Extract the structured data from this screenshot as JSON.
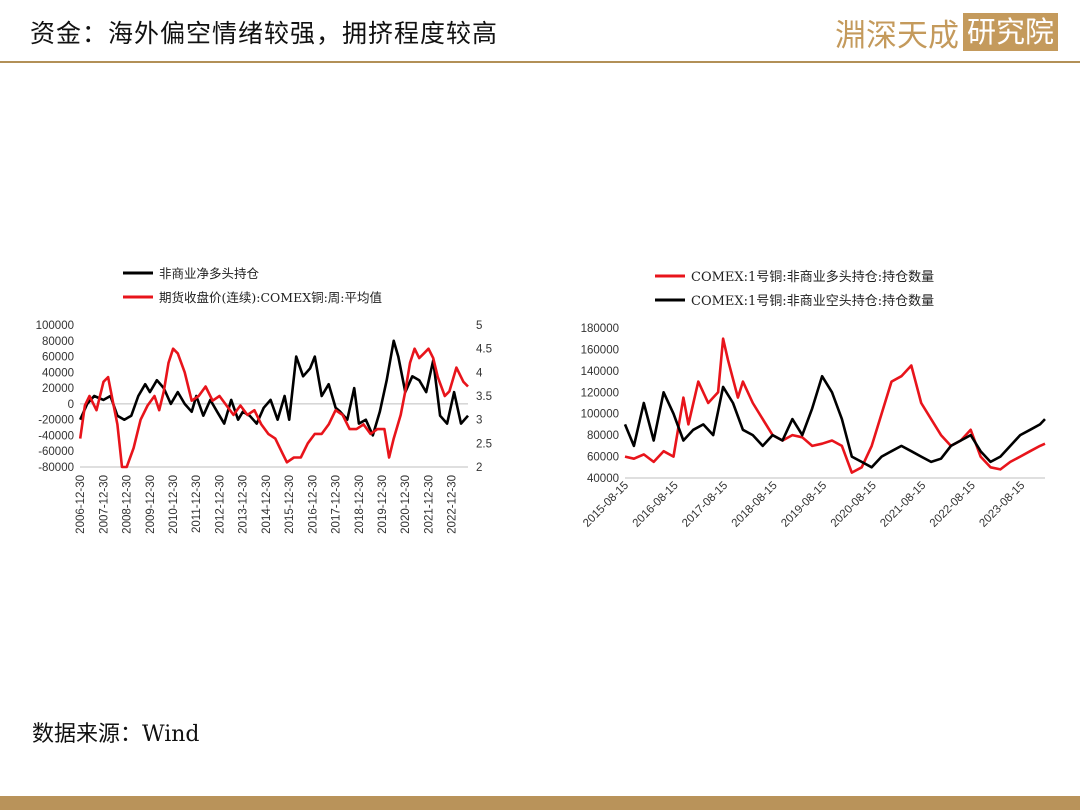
{
  "header": {
    "title": "资金：海外偏空情绪较强，拥挤程度较高",
    "logo_text": "淵深天成",
    "logo_boxed": "研究院"
  },
  "colors": {
    "accent": "#b9935a",
    "red": "#e8141b",
    "black": "#000000"
  },
  "source_text": "数据来源：Wind",
  "chart_data": [
    {
      "type": "line",
      "legend": [
        "非商业净多头持仓",
        "期货收盘价(连续):COMEX铜:周:平均值"
      ],
      "y_left": {
        "range": [
          -80000,
          100000
        ],
        "ticks": [
          "100000",
          "80000",
          "60000",
          "40000",
          "20000",
          "0",
          "-20000",
          "-40000",
          "-60000",
          "-80000"
        ]
      },
      "y_right": {
        "range": [
          2,
          5
        ],
        "ticks": [
          "5",
          "4.5",
          "4",
          "3.5",
          "3",
          "2.5",
          "2"
        ]
      },
      "x_range": [
        2006.99,
        2023.7
      ],
      "x_ticks": [
        "2006-12-30",
        "2007-12-30",
        "2008-12-30",
        "2009-12-30",
        "2010-12-30",
        "2011-12-30",
        "2012-12-30",
        "2013-12-30",
        "2014-12-30",
        "2015-12-30",
        "2016-12-30",
        "2017-12-30",
        "2018-12-30",
        "2019-12-30",
        "2020-12-30",
        "2021-12-30",
        "2022-12-30"
      ],
      "series": [
        {
          "name": "非商业净多头持仓",
          "axis": "left",
          "color": "#000000",
          "x": [
            2007.0,
            2007.3,
            2007.6,
            2008.0,
            2008.3,
            2008.6,
            2008.9,
            2009.2,
            2009.5,
            2009.8,
            2010.0,
            2010.3,
            2010.6,
            2010.9,
            2011.2,
            2011.5,
            2011.8,
            2012.0,
            2012.3,
            2012.6,
            2012.9,
            2013.2,
            2013.5,
            2013.8,
            2014.0,
            2014.3,
            2014.6,
            2014.9,
            2015.2,
            2015.5,
            2015.8,
            2016.0,
            2016.3,
            2016.6,
            2016.9,
            2017.1,
            2017.4,
            2017.7,
            2018.0,
            2018.2,
            2018.5,
            2018.8,
            2019.0,
            2019.3,
            2019.6,
            2019.9,
            2020.2,
            2020.5,
            2020.7,
            2021.0,
            2021.3,
            2021.6,
            2021.9,
            2022.2,
            2022.5,
            2022.8,
            2023.1,
            2023.4,
            2023.7
          ],
          "y": [
            -20000,
            0,
            10000,
            5000,
            10000,
            -15000,
            -20000,
            -15000,
            10000,
            25000,
            15000,
            30000,
            20000,
            0,
            15000,
            0,
            -10000,
            10000,
            -15000,
            5000,
            -10000,
            -25000,
            5000,
            -20000,
            -10000,
            -15000,
            -25000,
            -5000,
            5000,
            -20000,
            10000,
            -20000,
            60000,
            35000,
            45000,
            60000,
            10000,
            25000,
            -5000,
            -10000,
            -20000,
            20000,
            -25000,
            -20000,
            -40000,
            -10000,
            30000,
            80000,
            60000,
            15000,
            35000,
            30000,
            15000,
            55000,
            -15000,
            -25000,
            15000,
            -25000,
            -15000
          ]
        },
        {
          "name": "期货收盘价(连续):COMEX铜:周:平均值",
          "axis": "right",
          "color": "#e8141b",
          "x": [
            2007.0,
            2007.2,
            2007.4,
            2007.7,
            2008.0,
            2008.2,
            2008.4,
            2008.6,
            2008.8,
            2009.0,
            2009.3,
            2009.6,
            2009.9,
            2010.2,
            2010.4,
            2010.6,
            2010.8,
            2011.0,
            2011.2,
            2011.5,
            2011.8,
            2012.1,
            2012.4,
            2012.7,
            2013.0,
            2013.3,
            2013.6,
            2013.9,
            2014.2,
            2014.5,
            2014.8,
            2015.1,
            2015.4,
            2015.7,
            2015.9,
            2016.2,
            2016.5,
            2016.8,
            2017.1,
            2017.4,
            2017.7,
            2018.0,
            2018.3,
            2018.6,
            2018.9,
            2019.2,
            2019.5,
            2019.8,
            2020.1,
            2020.3,
            2020.5,
            2020.8,
            2021.0,
            2021.2,
            2021.4,
            2021.6,
            2021.8,
            2022.0,
            2022.2,
            2022.4,
            2022.7,
            2022.9,
            2023.2,
            2023.5,
            2023.7
          ],
          "y": [
            2.6,
            3.3,
            3.5,
            3.2,
            3.8,
            3.9,
            3.4,
            2.9,
            2.0,
            2.0,
            2.4,
            3.0,
            3.3,
            3.5,
            3.2,
            3.6,
            4.2,
            4.5,
            4.4,
            4.0,
            3.4,
            3.5,
            3.7,
            3.4,
            3.5,
            3.3,
            3.1,
            3.3,
            3.1,
            3.2,
            2.9,
            2.7,
            2.6,
            2.3,
            2.1,
            2.2,
            2.2,
            2.5,
            2.7,
            2.7,
            2.9,
            3.2,
            3.1,
            2.8,
            2.8,
            2.9,
            2.7,
            2.8,
            2.8,
            2.2,
            2.6,
            3.1,
            3.6,
            4.2,
            4.5,
            4.3,
            4.4,
            4.5,
            4.3,
            3.9,
            3.5,
            3.6,
            4.1,
            3.8,
            3.7
          ]
        }
      ]
    },
    {
      "type": "line",
      "legend": [
        "COMEX:1号铜:非商业多头持仓:持仓数量",
        "COMEX:1号铜:非商业空头持仓:持仓数量"
      ],
      "y_left": {
        "range": [
          40000,
          180000
        ],
        "ticks": [
          "180000",
          "160000",
          "140000",
          "120000",
          "100000",
          "80000",
          "60000",
          "40000"
        ]
      },
      "x_range": [
        2015.62,
        2024.1
      ],
      "x_ticks": [
        "2015-08-15",
        "2016-08-15",
        "2017-08-15",
        "2018-08-15",
        "2019-08-15",
        "2020-08-15",
        "2021-08-15",
        "2022-08-15",
        "2023-08-15"
      ],
      "series": [
        {
          "name": "COMEX:1号铜:非商业多头持仓:持仓数量",
          "axis": "left",
          "color": "#e8141b",
          "x": [
            2015.62,
            2015.8,
            2016.0,
            2016.2,
            2016.4,
            2016.6,
            2016.8,
            2016.9,
            2017.1,
            2017.3,
            2017.5,
            2017.6,
            2017.7,
            2017.9,
            2018.0,
            2018.2,
            2018.4,
            2018.6,
            2018.8,
            2019.0,
            2019.2,
            2019.4,
            2019.6,
            2019.8,
            2020.0,
            2020.2,
            2020.4,
            2020.6,
            2020.8,
            2021.0,
            2021.2,
            2021.4,
            2021.6,
            2021.8,
            2022.0,
            2022.2,
            2022.4,
            2022.6,
            2022.8,
            2023.0,
            2023.2,
            2023.4,
            2023.6,
            2023.8,
            2024.0,
            2024.1
          ],
          "y": [
            60000,
            58000,
            62000,
            55000,
            65000,
            60000,
            115000,
            90000,
            130000,
            110000,
            120000,
            170000,
            150000,
            115000,
            130000,
            110000,
            95000,
            80000,
            75000,
            80000,
            78000,
            70000,
            72000,
            75000,
            70000,
            45000,
            50000,
            70000,
            100000,
            130000,
            135000,
            145000,
            110000,
            95000,
            80000,
            70000,
            75000,
            85000,
            60000,
            50000,
            48000,
            55000,
            60000,
            65000,
            70000,
            72000
          ]
        },
        {
          "name": "COMEX:1号铜:非商业空头持仓:持仓数量",
          "axis": "left",
          "color": "#000000",
          "x": [
            2015.62,
            2015.8,
            2016.0,
            2016.2,
            2016.4,
            2016.6,
            2016.8,
            2017.0,
            2017.2,
            2017.4,
            2017.6,
            2017.8,
            2018.0,
            2018.2,
            2018.4,
            2018.6,
            2018.8,
            2019.0,
            2019.2,
            2019.4,
            2019.6,
            2019.8,
            2020.0,
            2020.2,
            2020.4,
            2020.6,
            2020.8,
            2021.0,
            2021.2,
            2021.4,
            2021.6,
            2021.8,
            2022.0,
            2022.2,
            2022.4,
            2022.6,
            2022.8,
            2023.0,
            2023.2,
            2023.4,
            2023.6,
            2023.8,
            2024.0,
            2024.1
          ],
          "y": [
            90000,
            70000,
            110000,
            75000,
            120000,
            100000,
            75000,
            85000,
            90000,
            80000,
            125000,
            110000,
            85000,
            80000,
            70000,
            80000,
            75000,
            95000,
            80000,
            105000,
            135000,
            120000,
            95000,
            60000,
            55000,
            50000,
            60000,
            65000,
            70000,
            65000,
            60000,
            55000,
            58000,
            70000,
            75000,
            80000,
            65000,
            55000,
            60000,
            70000,
            80000,
            85000,
            90000,
            95000
          ]
        }
      ]
    }
  ]
}
